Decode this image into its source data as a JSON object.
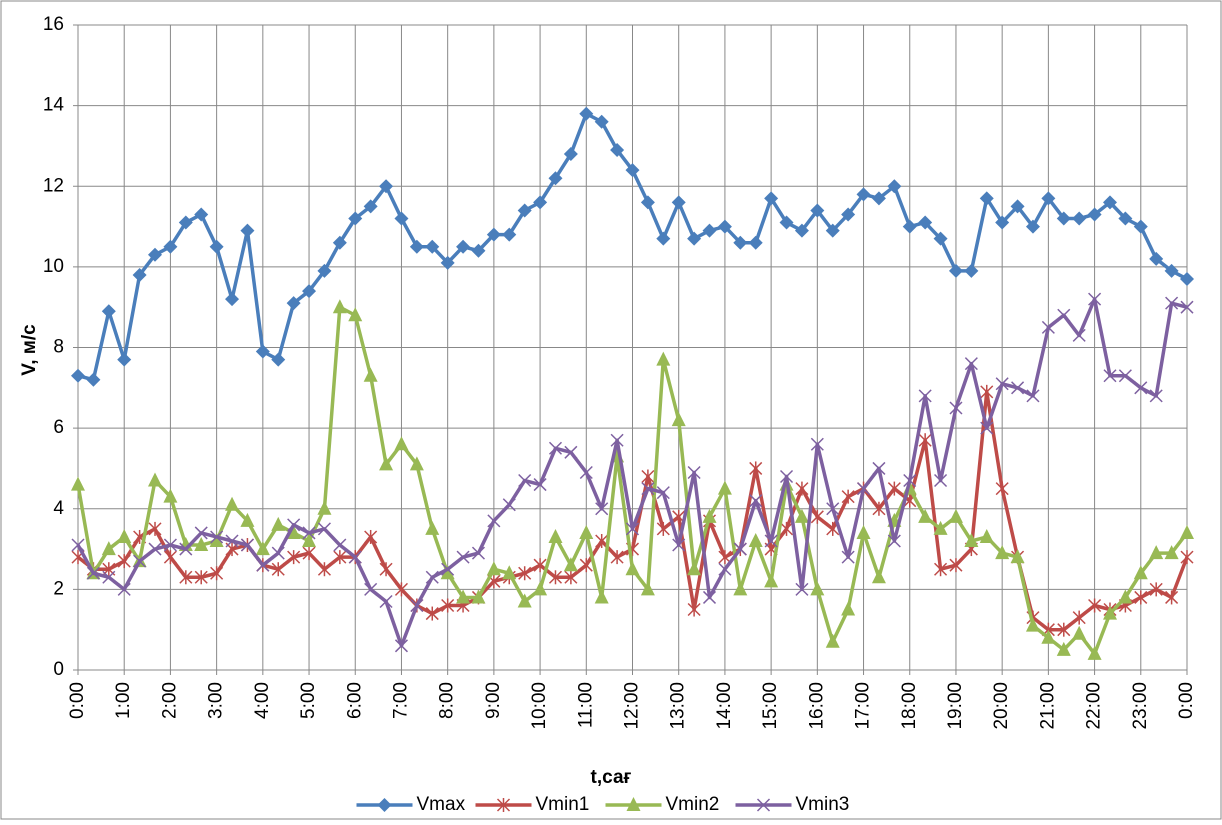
{
  "chart_data": {
    "type": "line",
    "x_label": "t,сағ",
    "y_label": "V, м/с",
    "categories": [
      "0:00",
      null,
      null,
      "1:00",
      null,
      null,
      "2:00",
      null,
      null,
      "3:00",
      null,
      null,
      "4:00",
      null,
      null,
      "5:00",
      null,
      null,
      "6:00",
      null,
      null,
      "7:00",
      null,
      null,
      "8:00",
      null,
      null,
      "9:00",
      null,
      null,
      "10:00",
      null,
      null,
      "11:00",
      null,
      null,
      "12:00",
      null,
      null,
      "13:00",
      null,
      null,
      "14:00",
      null,
      null,
      "15:00",
      null,
      null,
      "16:00",
      null,
      null,
      "17:00",
      null,
      null,
      "18:00",
      null,
      null,
      "19:00",
      null,
      null,
      "20:00",
      null,
      null,
      "21:00",
      null,
      null,
      "22:00",
      null,
      null,
      "23:00",
      null,
      null,
      "0:00"
    ],
    "series": [
      {
        "name": "Vmax",
        "color": "#4a7ebb",
        "marker": "diamond",
        "values": [
          7.3,
          7.2,
          8.9,
          7.7,
          9.8,
          10.3,
          10.5,
          11.1,
          11.3,
          10.5,
          9.2,
          10.9,
          7.9,
          7.7,
          9.1,
          9.4,
          9.9,
          10.6,
          11.2,
          11.5,
          12.0,
          11.2,
          10.5,
          10.5,
          10.1,
          10.5,
          10.4,
          10.8,
          10.8,
          11.4,
          11.6,
          12.2,
          12.8,
          13.8,
          13.6,
          12.9,
          12.4,
          11.6,
          10.7,
          11.6,
          10.7,
          10.9,
          11.0,
          10.6,
          10.6,
          11.7,
          11.1,
          10.9,
          11.4,
          10.9,
          11.3,
          11.8,
          11.7,
          12.0,
          11.0,
          11.1,
          10.7,
          9.9,
          9.9,
          11.7,
          11.1,
          11.5,
          11.0,
          11.7,
          11.2,
          11.2,
          11.3,
          11.6,
          11.2,
          11.0,
          10.2,
          9.9,
          9.7
        ]
      },
      {
        "name": "Vmin1",
        "color": "#be4b48",
        "marker": "star",
        "values": [
          2.8,
          2.5,
          2.5,
          2.7,
          3.3,
          3.5,
          2.8,
          2.3,
          2.3,
          2.4,
          3.0,
          3.1,
          2.6,
          2.5,
          2.8,
          2.9,
          2.5,
          2.8,
          2.8,
          3.3,
          2.5,
          2.0,
          1.6,
          1.4,
          1.6,
          1.6,
          1.8,
          2.2,
          2.3,
          2.4,
          2.6,
          2.3,
          2.3,
          2.6,
          3.2,
          2.8,
          3.0,
          4.8,
          3.5,
          3.8,
          1.5,
          3.7,
          2.8,
          3.0,
          5.0,
          3.0,
          3.5,
          4.5,
          3.8,
          3.5,
          4.3,
          4.5,
          4.0,
          4.5,
          4.2,
          5.7,
          2.5,
          2.6,
          3.0,
          6.9,
          4.5,
          2.8,
          1.3,
          1.0,
          1.0,
          1.3,
          1.6,
          1.5,
          1.6,
          1.8,
          2.0,
          1.8,
          2.8
        ]
      },
      {
        "name": "Vmin2",
        "color": "#98b954",
        "marker": "triangle",
        "values": [
          4.6,
          2.4,
          3.0,
          3.3,
          2.7,
          4.7,
          4.3,
          3.1,
          3.1,
          3.2,
          4.1,
          3.7,
          3.0,
          3.6,
          3.4,
          3.2,
          4.0,
          9.0,
          8.8,
          7.3,
          5.1,
          5.6,
          5.1,
          3.5,
          2.4,
          1.8,
          1.8,
          2.5,
          2.4,
          1.7,
          2.0,
          3.3,
          2.6,
          3.4,
          1.8,
          5.3,
          2.5,
          2.0,
          7.7,
          6.2,
          2.5,
          3.8,
          4.5,
          2.0,
          3.2,
          2.2,
          4.6,
          3.8,
          2.0,
          0.7,
          1.5,
          3.4,
          2.3,
          3.7,
          4.5,
          3.8,
          3.5,
          3.8,
          3.2,
          3.3,
          2.9,
          2.8,
          1.1,
          0.8,
          0.5,
          0.9,
          0.4,
          1.4,
          1.8,
          2.4,
          2.9,
          2.9,
          3.4
        ]
      },
      {
        "name": "Vmin3",
        "color": "#7d60a0",
        "marker": "x",
        "values": [
          3.1,
          2.4,
          2.3,
          2.0,
          2.7,
          3.0,
          3.1,
          3.0,
          3.4,
          3.3,
          3.2,
          3.1,
          2.6,
          2.9,
          3.6,
          3.4,
          3.5,
          3.1,
          2.8,
          2.0,
          1.7,
          0.6,
          1.6,
          2.3,
          2.5,
          2.8,
          2.9,
          3.7,
          4.1,
          4.7,
          4.6,
          5.5,
          5.4,
          4.9,
          4.0,
          5.7,
          3.5,
          4.5,
          4.4,
          3.1,
          4.9,
          1.8,
          2.5,
          3.0,
          4.2,
          3.2,
          4.8,
          2.0,
          5.6,
          4.0,
          2.8,
          4.5,
          5.0,
          3.2,
          4.7,
          6.8,
          4.7,
          6.5,
          7.6,
          6.0,
          7.1,
          7.0,
          6.8,
          8.5,
          8.8,
          8.3,
          9.2,
          7.3,
          7.3,
          7.0,
          6.8,
          9.1,
          9.0
        ]
      }
    ],
    "ylim": [
      0,
      16
    ],
    "yticks": [
      0,
      2,
      4,
      6,
      8,
      10,
      12,
      14,
      16
    ],
    "grid": true,
    "legend": "bottom"
  }
}
